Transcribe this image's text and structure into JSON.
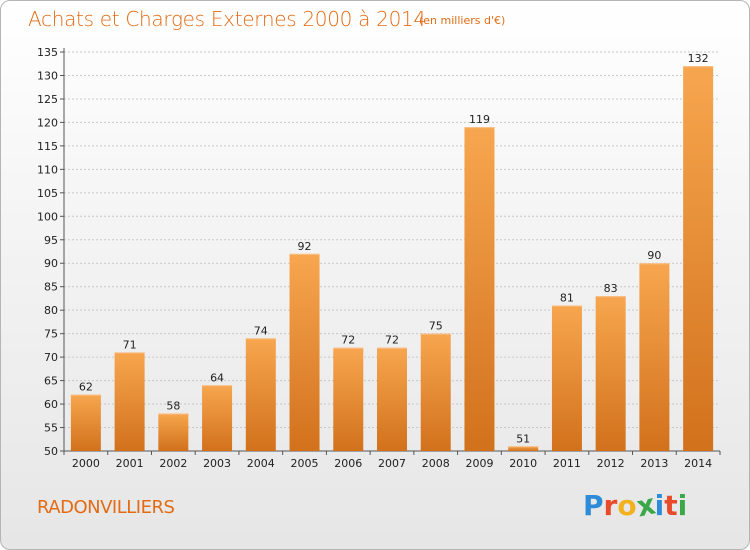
{
  "header": {
    "title": "Achats et Charges Externes 2000 à 2014",
    "unit": "(en milliers d'€)"
  },
  "footer": {
    "commune": "RADONVILLIERS",
    "logo": [
      "P",
      "r",
      "o",
      "x",
      "i",
      "t",
      "i"
    ]
  },
  "colors": {
    "accent": "#e36b14",
    "bar_light": "#f6a24c",
    "bar_dark": "#d8741e",
    "grid": "#c8c8c8",
    "logo": [
      "#2e8bd8",
      "#e84a2a",
      "#f2b21f",
      "#3aa84a",
      "#2e8bd8",
      "#e84a2a",
      "#3aa84a"
    ]
  },
  "chart_data": {
    "type": "bar",
    "categories": [
      "2000",
      "2001",
      "2002",
      "2003",
      "2004",
      "2005",
      "2006",
      "2007",
      "2008",
      "2009",
      "2010",
      "2011",
      "2012",
      "2013",
      "2014"
    ],
    "values": [
      62,
      71,
      58,
      64,
      74,
      92,
      72,
      72,
      75,
      119,
      51,
      81,
      83,
      90,
      132
    ],
    "title": "Achats et Charges Externes 2000 à 2014",
    "xlabel": "",
    "ylabel": "",
    "ylim": [
      50,
      135
    ],
    "yticks": [
      50,
      55,
      60,
      65,
      70,
      75,
      80,
      85,
      90,
      95,
      100,
      105,
      110,
      115,
      120,
      125,
      130,
      135
    ],
    "grid": true,
    "legend": "none"
  }
}
